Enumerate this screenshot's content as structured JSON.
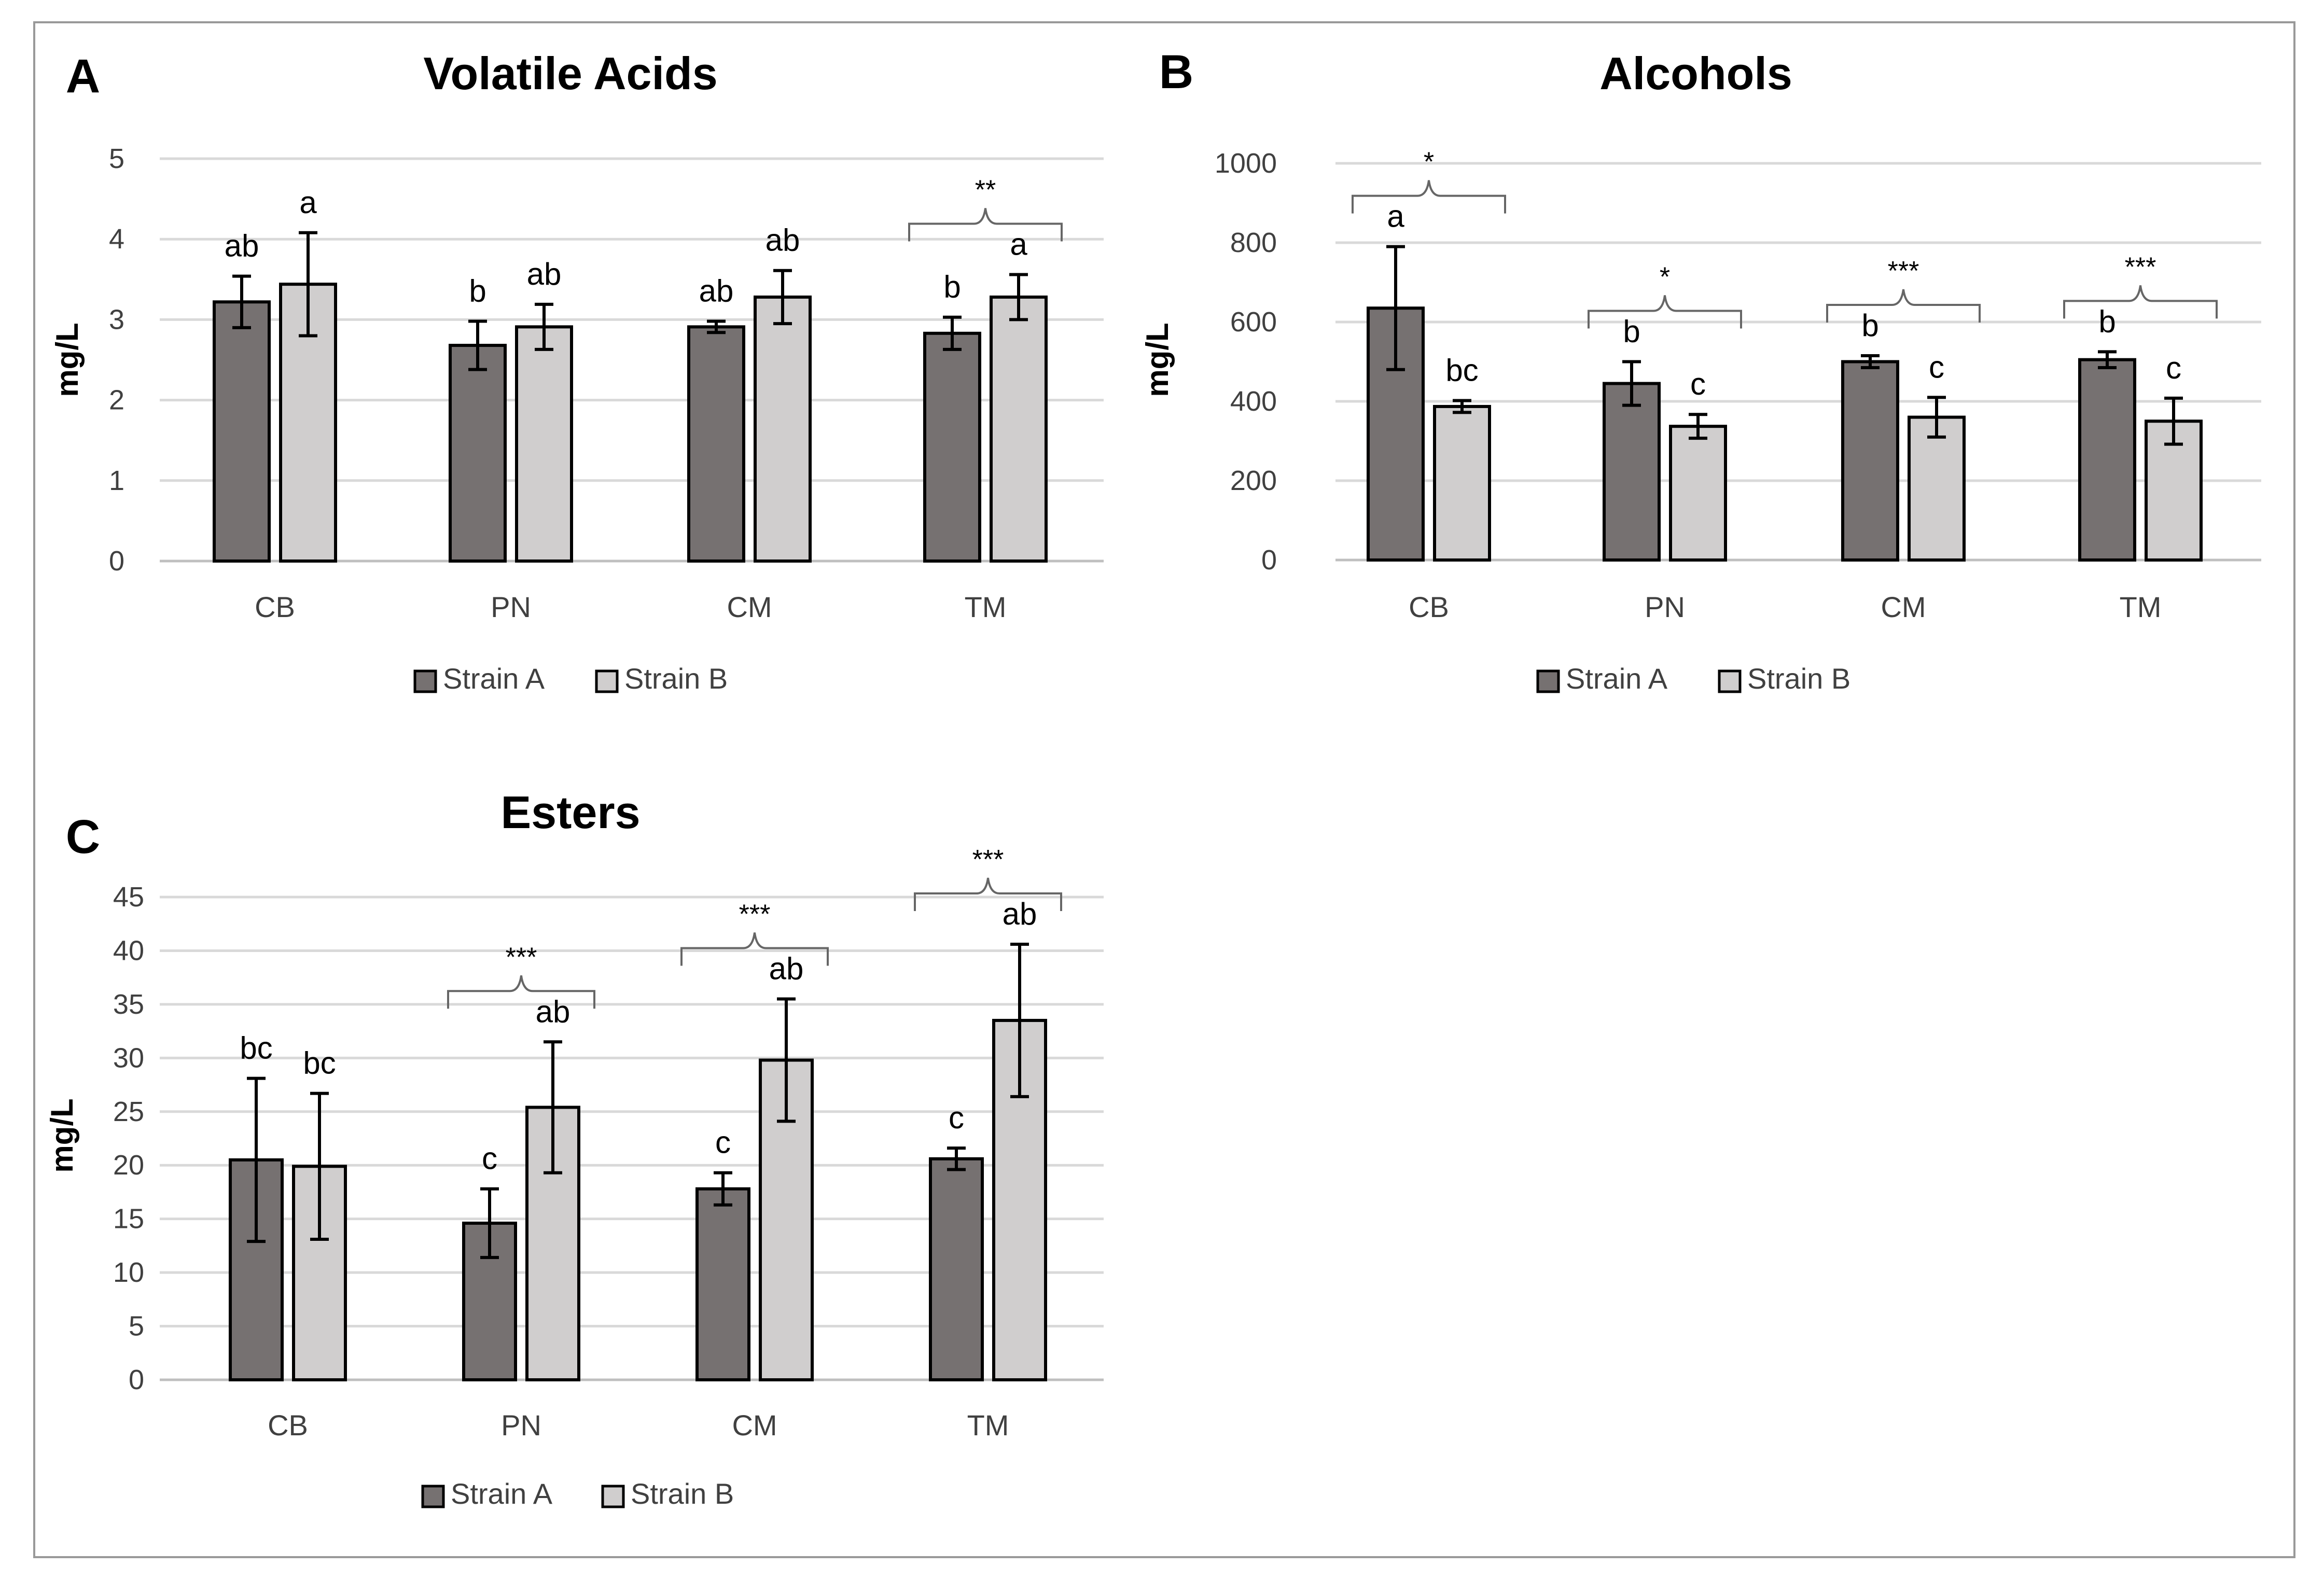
{
  "colors": {
    "strain_a": "#767171",
    "strain_b": "#d0cece",
    "grid": "#d9d9d9",
    "axis": "#bfbfbf",
    "text": "#000000",
    "text_secondary": "#404040",
    "border": "#999999"
  },
  "chart_data": [
    {
      "type": "bar",
      "panel_label": "A",
      "title": "Volatile Acids",
      "xlabel": "",
      "ylabel": "mg/L",
      "ylim": [
        0,
        5
      ],
      "y_ticks": [
        0,
        1,
        2,
        3,
        4,
        5
      ],
      "tick_labels": [
        "0",
        "1",
        "2",
        "3",
        "4",
        "5"
      ],
      "grid": true,
      "legend_position": "bottom",
      "categories": [
        "CB",
        "PN",
        "CM",
        "TM"
      ],
      "series": [
        {
          "name": "Strain A",
          "values": [
            3.22,
            2.68,
            2.91,
            2.83
          ],
          "errors": [
            0.32,
            0.3,
            0.07,
            0.2
          ],
          "letters": [
            "ab",
            "b",
            "ab",
            "b"
          ]
        },
        {
          "name": "Strain B",
          "values": [
            3.44,
            2.91,
            3.28,
            3.28
          ],
          "errors": [
            0.64,
            0.28,
            0.33,
            0.28
          ],
          "letters": [
            "a",
            "ab",
            "ab",
            "a"
          ]
        }
      ],
      "significance": [
        {
          "category": "TM",
          "label": "**"
        }
      ]
    },
    {
      "type": "bar",
      "panel_label": "B",
      "title": "Alcohols",
      "xlabel": "",
      "ylabel": "mg/L",
      "ylim": [
        0,
        1000
      ],
      "y_ticks": [
        0,
        200,
        400,
        600,
        800,
        1000
      ],
      "tick_labels": [
        "0",
        "200",
        "400",
        "600",
        "800",
        "1000"
      ],
      "grid": true,
      "legend_position": "bottom",
      "categories": [
        "CB",
        "PN",
        "CM",
        "TM"
      ],
      "series": [
        {
          "name": "Strain A",
          "values": [
            635,
            445,
            500,
            505
          ],
          "errors": [
            155,
            55,
            15,
            20
          ],
          "letters": [
            "a",
            "b",
            "b",
            "b"
          ]
        },
        {
          "name": "Strain B",
          "values": [
            387,
            337,
            360,
            350
          ],
          "errors": [
            15,
            30,
            50,
            58
          ],
          "letters": [
            "bc",
            "c",
            "c",
            "c"
          ]
        }
      ],
      "significance": [
        {
          "category": "CB",
          "label": "*"
        },
        {
          "category": "PN",
          "label": "*"
        },
        {
          "category": "CM",
          "label": "***"
        },
        {
          "category": "TM",
          "label": "***"
        }
      ]
    },
    {
      "type": "bar",
      "panel_label": "C",
      "title": "Esters",
      "xlabel": "",
      "ylabel": "mg/L",
      "ylim": [
        0,
        45
      ],
      "y_ticks": [
        0,
        5,
        10,
        15,
        20,
        25,
        30,
        35,
        40,
        45
      ],
      "tick_labels": [
        "0",
        "5",
        "10",
        "15",
        "20",
        "25",
        "30",
        "35",
        "40",
        "45"
      ],
      "grid": true,
      "legend_position": "bottom",
      "categories": [
        "CB",
        "PN",
        "CM",
        "TM"
      ],
      "series": [
        {
          "name": "Strain A",
          "values": [
            20.5,
            14.6,
            17.8,
            20.6
          ],
          "errors": [
            7.6,
            3.2,
            1.5,
            1.0
          ],
          "letters": [
            "bc",
            "c",
            "c",
            "c"
          ]
        },
        {
          "name": "Strain B",
          "values": [
            19.9,
            25.4,
            29.8,
            33.5
          ],
          "errors": [
            6.8,
            6.1,
            5.7,
            7.1
          ],
          "letters": [
            "bc",
            "ab",
            "ab",
            "ab"
          ]
        }
      ],
      "significance": [
        {
          "category": "PN",
          "label": "***"
        },
        {
          "category": "CM",
          "label": "***"
        },
        {
          "category": "TM",
          "label": "***"
        }
      ]
    }
  ]
}
